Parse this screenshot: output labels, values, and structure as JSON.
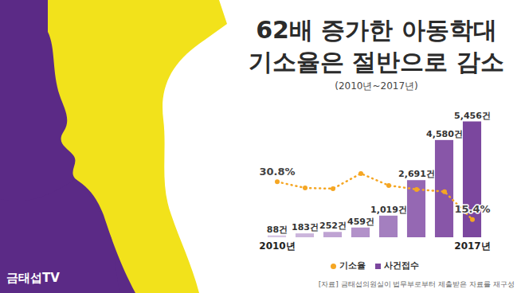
{
  "chart_data": {
    "type": "bar",
    "title": "62배 증가한 아동학대 기소율은 절반으로 감소",
    "subtitle": "(2010년~2017년)",
    "categories": [
      "2010년",
      null,
      null,
      null,
      null,
      null,
      null,
      "2017년"
    ],
    "series": [
      {
        "name": "기소율",
        "type": "line",
        "axis": "y2",
        "color": "#f5a623",
        "line_style": "dotted",
        "marker": "circle",
        "values": [
          30.8,
          28.3,
          28.0,
          34.2,
          29.3,
          27.7,
          26.8,
          15.4
        ],
        "value_labels": [
          "30.8%",
          null,
          null,
          null,
          null,
          null,
          null,
          "15.4%"
        ]
      },
      {
        "name": "사건접수",
        "type": "bar",
        "colors": [
          "#d6c6e4",
          "#cbb5dc",
          "#bfa3d3",
          "#b291c9",
          "#a47fbf",
          "#9568b3",
          "#8856a8",
          "#7b479e"
        ],
        "values": [
          88,
          183,
          252,
          459,
          1019,
          2691,
          4580,
          5456
        ],
        "value_labels": [
          "88건",
          "183건",
          "252건",
          "459건",
          "1,019건",
          "2,691건",
          "4,580건",
          "5,456건"
        ]
      }
    ],
    "ylim": [
      0,
      6000
    ],
    "y2lim": [
      8,
      60
    ],
    "tick_labels": "x",
    "data_labels": true,
    "legend": "bottom",
    "source": "[자료] 금태섭의원실이 법무부로부터 제출받은 자료를 재구성",
    "logo": "금태섭TV"
  }
}
